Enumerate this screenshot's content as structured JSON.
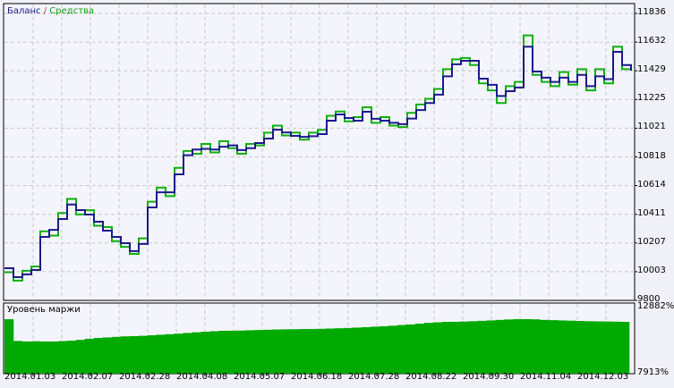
{
  "chart_data": [
    {
      "type": "line",
      "title_parts": [
        "Баланс",
        "/",
        "Средства"
      ],
      "colors": {
        "balance": "#1a1a8c",
        "equity": "#10b010",
        "grid": "#c8c8c8",
        "background": "#f4f4fc"
      },
      "ylim": [
        9800,
        11836
      ],
      "y_ticks": [
        "11836",
        "11632",
        "11429",
        "11225",
        "11021",
        "10818",
        "10614",
        "10411",
        "10207",
        "10003",
        "9800"
      ],
      "x_ticks": [
        "2014.01.03",
        "2014.02.07",
        "2014.02.28",
        "2014.04.08",
        "2014.05.07",
        "2014.06.18",
        "2014.07.28",
        "2014.08.22",
        "2014.09.30",
        "2014.11.04",
        "2014.12.03"
      ],
      "grid": true,
      "series": [
        {
          "name": "Баланс",
          "values": [
            10028,
            9965,
            9985,
            10016,
            10250,
            10300,
            10377,
            10480,
            10441,
            10409,
            10358,
            10295,
            10250,
            10206,
            10150,
            10200,
            10460,
            10567,
            10567,
            10694,
            10830,
            10870,
            10875,
            10870,
            10890,
            10900,
            10866,
            10880,
            10916,
            10948,
            11011,
            10992,
            10967,
            10960,
            10965,
            10980,
            11075,
            11119,
            11094,
            11075,
            11138,
            11088,
            11075,
            11060,
            11050,
            11090,
            11150,
            11200,
            11260,
            11390,
            11475,
            11500,
            11500,
            11373,
            11329,
            11250,
            11284,
            11310,
            11600,
            11424,
            11380,
            11350,
            11380,
            11350,
            11400,
            11320,
            11390,
            11370,
            11563,
            11470,
            11430
          ]
        },
        {
          "name": "Средства",
          "values": [
            10000,
            9940,
            10010,
            10040,
            10290,
            10260,
            10420,
            10520,
            10410,
            10440,
            10330,
            10320,
            10220,
            10180,
            10130,
            10240,
            10500,
            10600,
            10540,
            10740,
            10860,
            10840,
            10910,
            10850,
            10930,
            10880,
            10840,
            10910,
            10900,
            10990,
            11040,
            10970,
            10990,
            10940,
            10990,
            11010,
            11110,
            11140,
            11070,
            11100,
            11170,
            11060,
            11100,
            11040,
            11030,
            11130,
            11190,
            11230,
            11300,
            11440,
            11510,
            11520,
            11470,
            11340,
            11290,
            11200,
            11320,
            11350,
            11680,
            11400,
            11350,
            11320,
            11420,
            11330,
            11440,
            11290,
            11440,
            11340,
            11600,
            11440,
            11460
          ]
        }
      ]
    },
    {
      "type": "bar",
      "title": "Уровень маржи",
      "ylim": [
        7913,
        12882
      ],
      "y_ticks": [
        "12882%",
        "7913%"
      ],
      "color": "#00aa00",
      "values": [
        11950,
        10340,
        10300,
        10320,
        10298,
        10298,
        10330,
        10360,
        10420,
        10500,
        10560,
        10600,
        10640,
        10680,
        10696,
        10720,
        10760,
        10800,
        10840,
        10880,
        10930,
        10980,
        11020,
        11060,
        11093,
        11100,
        11110,
        11130,
        11150,
        11170,
        11190,
        11200,
        11210,
        11226,
        11226,
        11240,
        11260,
        11280,
        11300,
        11330,
        11360,
        11400,
        11430,
        11470,
        11520,
        11560,
        11620,
        11680,
        11720,
        11756,
        11760,
        11780,
        11800,
        11830,
        11860,
        11900,
        11930,
        11955,
        11955,
        11940,
        11900,
        11880,
        11860,
        11840,
        11820,
        11800,
        11790,
        11780,
        11770,
        11756
      ]
    }
  ]
}
